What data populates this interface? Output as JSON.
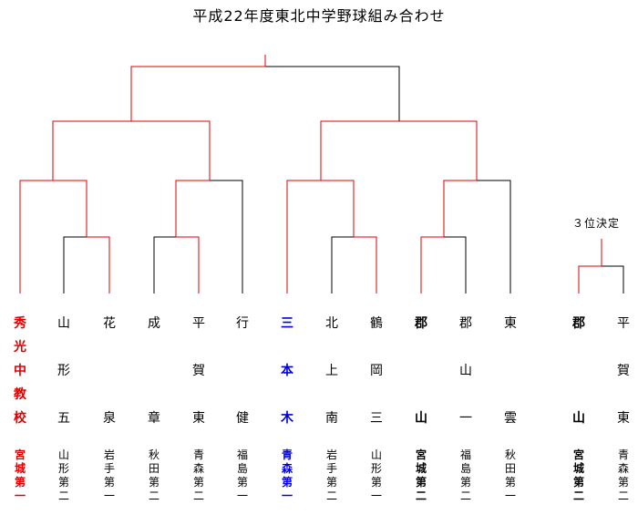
{
  "title": "平成22年度東北中学野球組み合わせ",
  "third_place_label": "３位決定",
  "colors": {
    "winner": "#e00000",
    "semifinal": "#0000e0",
    "line": "#000000"
  },
  "teams": [
    {
      "name": [
        "秀",
        "光",
        "中",
        "教",
        "校"
      ],
      "pref": [
        "宮",
        "城",
        "第",
        "一"
      ],
      "style": "winner"
    },
    {
      "name": [
        "山",
        "",
        "形",
        "",
        "五"
      ],
      "pref": [
        "山",
        "形",
        "第",
        "二"
      ],
      "style": ""
    },
    {
      "name": [
        "花",
        "",
        "",
        "",
        "泉"
      ],
      "pref": [
        "岩",
        "手",
        "第",
        "一"
      ],
      "style": ""
    },
    {
      "name": [
        "成",
        "",
        "",
        "",
        "章"
      ],
      "pref": [
        "秋",
        "田",
        "第",
        "二"
      ],
      "style": ""
    },
    {
      "name": [
        "平",
        "",
        "賀",
        "",
        "東"
      ],
      "pref": [
        "青",
        "森",
        "第",
        "二"
      ],
      "style": ""
    },
    {
      "name": [
        "行",
        "",
        "",
        "",
        "健"
      ],
      "pref": [
        "福",
        "島",
        "第",
        "一"
      ],
      "style": ""
    },
    {
      "name": [
        "三",
        "",
        "本",
        "",
        "木"
      ],
      "pref": [
        "青",
        "森",
        "第",
        "一"
      ],
      "style": "third"
    },
    {
      "name": [
        "北",
        "",
        "上",
        "",
        "南"
      ],
      "pref": [
        "岩",
        "手",
        "第",
        "二"
      ],
      "style": ""
    },
    {
      "name": [
        "鶴",
        "",
        "岡",
        "",
        "三"
      ],
      "pref": [
        "山",
        "形",
        "第",
        "一"
      ],
      "style": ""
    },
    {
      "name": [
        "郡",
        "",
        "",
        "",
        "山"
      ],
      "pref": [
        "宮",
        "城",
        "第",
        "二"
      ],
      "style": "bold"
    },
    {
      "name": [
        "郡",
        "",
        "山",
        "",
        "一"
      ],
      "pref": [
        "福",
        "島",
        "第",
        "二"
      ],
      "style": ""
    },
    {
      "name": [
        "東",
        "",
        "",
        "",
        "雲"
      ],
      "pref": [
        "秋",
        "田",
        "第",
        "一"
      ],
      "style": ""
    },
    {
      "name": [
        "郡",
        "",
        "",
        "",
        "山"
      ],
      "pref": [
        "宮",
        "城",
        "第",
        "二"
      ],
      "style": "bold"
    },
    {
      "name": [
        "平",
        "",
        "賀",
        "",
        "東"
      ],
      "pref": [
        "青",
        "森",
        "第",
        "二"
      ],
      "style": ""
    }
  ]
}
